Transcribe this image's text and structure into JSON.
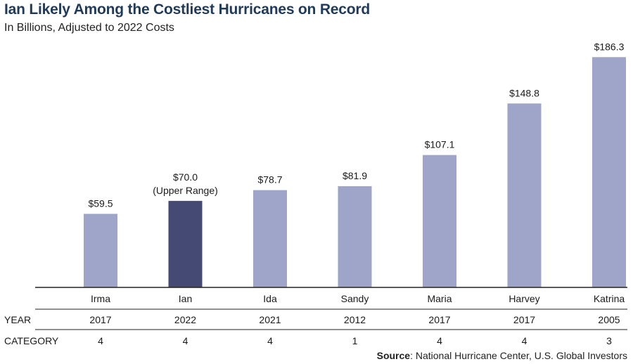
{
  "chart_data": {
    "type": "bar",
    "title": "Ian Likely Among the Costliest Hurricanes on Record",
    "subtitle": "In Billions, Adjusted to 2022 Costs",
    "categories": [
      "Irma",
      "Ian",
      "Ida",
      "Sandy",
      "Maria",
      "Harvey",
      "Katrina"
    ],
    "values": [
      59.5,
      70.0,
      78.7,
      81.9,
      107.1,
      148.8,
      186.3
    ],
    "value_labels": [
      "$59.5",
      "$70.0",
      "$78.7",
      "$81.9",
      "$107.1",
      "$148.8",
      "$186.3"
    ],
    "value_label_notes": [
      "",
      "(Upper Range)",
      "",
      "",
      "",
      "",
      ""
    ],
    "highlight_index": 1,
    "ylim": [
      0,
      195
    ],
    "grid": false,
    "rows": [
      {
        "label": "YEAR",
        "values": [
          "2017",
          "2022",
          "2021",
          "2012",
          "2017",
          "2017",
          "2005"
        ]
      },
      {
        "label": "CATEGORY",
        "values": [
          "4",
          "4",
          "4",
          "1",
          "4",
          "4",
          "3"
        ]
      }
    ],
    "colors": {
      "bar": "#9fa5c8",
      "highlight": "#454a75",
      "axis": "#222222"
    }
  },
  "source": {
    "label": "Source",
    "text": ": National Hurricane Center, U.S. Global Investors"
  }
}
